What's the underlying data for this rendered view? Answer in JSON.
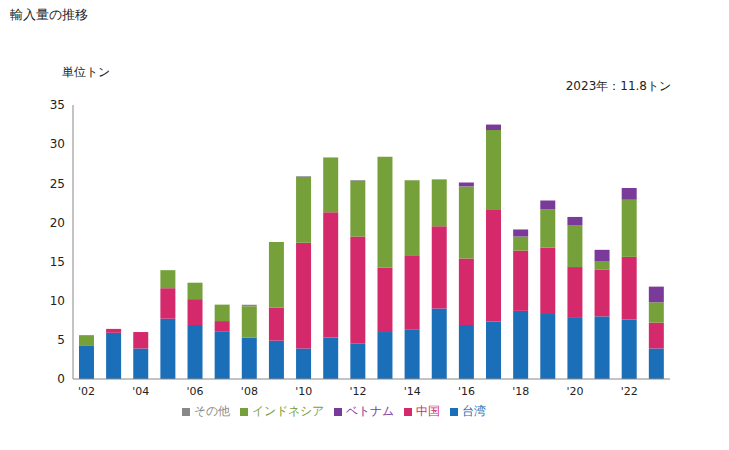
{
  "chart_data": {
    "type": "bar",
    "title": "輸入量の推移",
    "y_label": "単位トン",
    "annotations": [
      "2023年：11.8トン"
    ],
    "stacked": true,
    "grid": false,
    "legend": "bottom",
    "categories": [
      "'02",
      null,
      "'04",
      null,
      "'06",
      null,
      "'08",
      null,
      "'10",
      null,
      "'12",
      null,
      "'14",
      null,
      "'16",
      null,
      "'18",
      null,
      "'20",
      null,
      "'22",
      null
    ],
    "ylim": [
      0,
      35
    ],
    "yticks": [
      0,
      5,
      10,
      15,
      20,
      25,
      30,
      35
    ],
    "series": [
      {
        "name": "台湾",
        "color": "#1a6fb8",
        "values": [
          4.3,
          5.9,
          3.9,
          7.7,
          6.9,
          6.1,
          5.3,
          4.9,
          3.9,
          5.3,
          4.5,
          6.0,
          6.3,
          9.0,
          6.9,
          7.3,
          8.7,
          8.3,
          7.8,
          8.0,
          7.6,
          3.9
        ]
      },
      {
        "name": "中国",
        "color": "#d42a6c",
        "values": [
          0,
          0.5,
          2.1,
          3.9,
          3.3,
          1.3,
          0,
          4.2,
          13.5,
          16.0,
          13.7,
          8.2,
          9.5,
          10.5,
          8.5,
          14.3,
          7.7,
          8.5,
          6.5,
          6.0,
          8.0,
          3.3
        ]
      },
      {
        "name": "インドネシア",
        "color": "#76a03a",
        "values": [
          1.3,
          0,
          0,
          2.3,
          2.1,
          2.1,
          4.0,
          8.4,
          8.4,
          7.0,
          7.1,
          14.2,
          9.6,
          6.0,
          9.2,
          10.2,
          1.8,
          4.9,
          5.3,
          1.0,
          7.3,
          2.6
        ]
      },
      {
        "name": "ベトナム",
        "color": "#7a3a9a",
        "values": [
          0,
          0,
          0,
          0,
          0,
          0,
          0,
          0,
          0,
          0,
          0,
          0,
          0,
          0,
          0.5,
          0.7,
          0.9,
          1.1,
          1.1,
          1.5,
          1.5,
          2.0
        ]
      },
      {
        "name": "その他",
        "color": "#888888",
        "values": [
          0,
          0,
          0,
          0,
          0,
          0,
          0.2,
          0,
          0.1,
          0,
          0.1,
          0,
          0,
          0,
          0,
          0,
          0,
          0,
          0,
          0,
          0,
          0
        ]
      }
    ]
  }
}
